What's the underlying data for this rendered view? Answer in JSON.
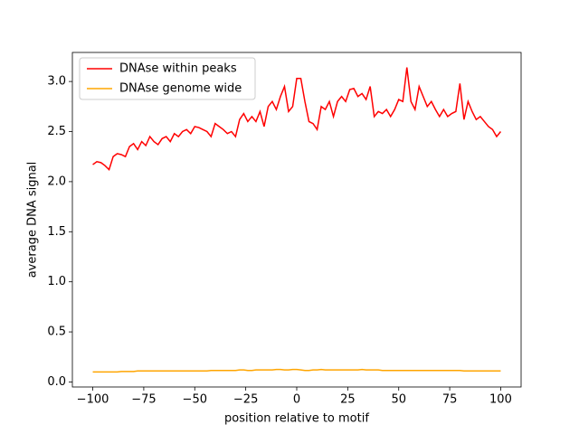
{
  "chart_data": {
    "type": "line",
    "xlabel": "position relative to motif",
    "ylabel": "average DNA signal",
    "x": [
      -100,
      -98,
      -96,
      -94,
      -92,
      -90,
      -88,
      -86,
      -84,
      -82,
      -80,
      -78,
      -76,
      -74,
      -72,
      -70,
      -68,
      -66,
      -64,
      -62,
      -60,
      -58,
      -56,
      -54,
      -52,
      -50,
      -48,
      -46,
      -44,
      -42,
      -40,
      -38,
      -36,
      -34,
      -32,
      -30,
      -28,
      -26,
      -24,
      -22,
      -20,
      -18,
      -16,
      -14,
      -12,
      -10,
      -8,
      -6,
      -4,
      -2,
      0,
      2,
      4,
      6,
      8,
      10,
      12,
      14,
      16,
      18,
      20,
      22,
      24,
      26,
      28,
      30,
      32,
      34,
      36,
      38,
      40,
      42,
      44,
      46,
      48,
      50,
      52,
      54,
      56,
      58,
      60,
      62,
      64,
      66,
      68,
      70,
      72,
      74,
      76,
      78,
      80,
      82,
      84,
      86,
      88,
      90,
      92,
      94,
      96,
      98,
      100
    ],
    "series": [
      {
        "name": "DNAse within peaks",
        "color": "#ff0000",
        "values": [
          2.17,
          2.2,
          2.19,
          2.16,
          2.12,
          2.25,
          2.28,
          2.27,
          2.25,
          2.35,
          2.38,
          2.32,
          2.4,
          2.36,
          2.45,
          2.4,
          2.37,
          2.43,
          2.45,
          2.4,
          2.48,
          2.45,
          2.5,
          2.52,
          2.48,
          2.55,
          2.54,
          2.52,
          2.5,
          2.45,
          2.58,
          2.55,
          2.52,
          2.48,
          2.5,
          2.45,
          2.62,
          2.68,
          2.6,
          2.65,
          2.6,
          2.7,
          2.55,
          2.75,
          2.8,
          2.72,
          2.85,
          2.95,
          2.7,
          2.75,
          3.03,
          3.03,
          2.8,
          2.6,
          2.58,
          2.52,
          2.75,
          2.72,
          2.8,
          2.65,
          2.8,
          2.85,
          2.8,
          2.92,
          2.93,
          2.85,
          2.88,
          2.82,
          2.95,
          2.65,
          2.7,
          2.68,
          2.72,
          2.65,
          2.72,
          2.82,
          2.8,
          3.14,
          2.8,
          2.72,
          2.95,
          2.85,
          2.75,
          2.8,
          2.72,
          2.65,
          2.72,
          2.65,
          2.68,
          2.7,
          2.98,
          2.62,
          2.8,
          2.7,
          2.62,
          2.65,
          2.6,
          2.55,
          2.52,
          2.45,
          2.5
        ]
      },
      {
        "name": "DNAse genome wide",
        "color": "#ffa500",
        "values": [
          0.1,
          0.1,
          0.1,
          0.1,
          0.1,
          0.1,
          0.1,
          0.105,
          0.105,
          0.105,
          0.105,
          0.11,
          0.11,
          0.11,
          0.11,
          0.11,
          0.11,
          0.11,
          0.11,
          0.11,
          0.11,
          0.11,
          0.11,
          0.11,
          0.11,
          0.11,
          0.11,
          0.11,
          0.11,
          0.115,
          0.115,
          0.115,
          0.115,
          0.115,
          0.115,
          0.115,
          0.12,
          0.12,
          0.115,
          0.115,
          0.12,
          0.12,
          0.12,
          0.12,
          0.12,
          0.125,
          0.125,
          0.12,
          0.12,
          0.125,
          0.125,
          0.12,
          0.115,
          0.115,
          0.12,
          0.12,
          0.125,
          0.12,
          0.12,
          0.12,
          0.12,
          0.12,
          0.12,
          0.12,
          0.12,
          0.12,
          0.125,
          0.12,
          0.12,
          0.12,
          0.12,
          0.115,
          0.115,
          0.115,
          0.115,
          0.115,
          0.115,
          0.115,
          0.115,
          0.115,
          0.115,
          0.115,
          0.115,
          0.115,
          0.115,
          0.115,
          0.115,
          0.115,
          0.115,
          0.115,
          0.115,
          0.11,
          0.11,
          0.11,
          0.11,
          0.11,
          0.11,
          0.11,
          0.11,
          0.11,
          0.11
        ]
      }
    ],
    "xlim": [
      -110,
      110
    ],
    "ylim": [
      -0.05,
      3.29
    ],
    "xticks": [
      {
        "value": -100,
        "label": "−100"
      },
      {
        "value": -75,
        "label": "−75"
      },
      {
        "value": -50,
        "label": "−50"
      },
      {
        "value": -25,
        "label": "−25"
      },
      0,
      25,
      50,
      75,
      100
    ],
    "yticks": [
      {
        "value": 0,
        "label": "0.0"
      },
      0.5,
      {
        "value": 1,
        "label": "1.0"
      },
      1.5,
      {
        "value": 2,
        "label": "2.0"
      },
      2.5,
      {
        "value": 3,
        "label": "3.0"
      }
    ],
    "legend": "upper left",
    "grid": false
  }
}
